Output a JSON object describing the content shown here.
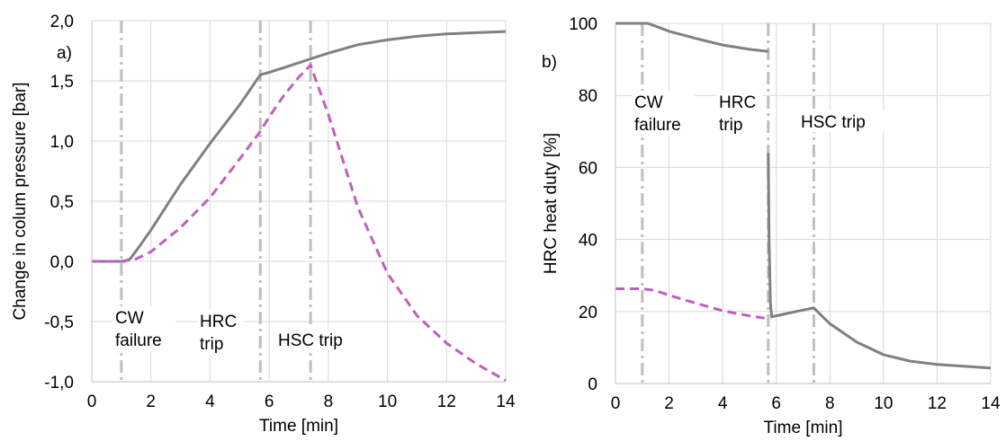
{
  "chart_data": [
    {
      "type": "line",
      "panel_label": "a)",
      "xlabel": "Time [min]",
      "ylabel": "Change in colum pressure [bar]",
      "xlim": [
        0,
        14
      ],
      "ylim": [
        -1.0,
        2.0
      ],
      "xticks": [
        0,
        2,
        4,
        6,
        8,
        10,
        12,
        14
      ],
      "xtick_labels": [
        "0",
        "2",
        "4",
        "6",
        "8",
        "10",
        "12",
        "14"
      ],
      "yticks": [
        -1.0,
        -0.5,
        0.0,
        0.5,
        1.0,
        1.5,
        2.0
      ],
      "ytick_labels": [
        "-1,0",
        "-0,5",
        "0,0",
        "0,5",
        "1,0",
        "1,5",
        "2,0"
      ],
      "grid": true,
      "events": [
        {
          "x": 1.0,
          "label_lines": [
            "CW",
            "failure"
          ]
        },
        {
          "x": 5.7,
          "label_lines": [
            "HRC",
            "trip"
          ]
        },
        {
          "x": 7.4,
          "label_lines": [
            "HSC trip"
          ]
        }
      ],
      "series": [
        {
          "style": "solid",
          "color": "#808080",
          "x": [
            0,
            1.1,
            1.3,
            1.6,
            2,
            3,
            4,
            5,
            5.7,
            6,
            6.5,
            7,
            7.5,
            8,
            9,
            10,
            11,
            12,
            13,
            14
          ],
          "y": [
            0.0,
            0.0,
            0.02,
            0.12,
            0.26,
            0.64,
            0.98,
            1.3,
            1.55,
            1.57,
            1.61,
            1.65,
            1.69,
            1.73,
            1.8,
            1.84,
            1.87,
            1.89,
            1.9,
            1.91
          ]
        },
        {
          "style": "dashed",
          "color": "#bf5fbf",
          "x": [
            0,
            1.0,
            1.5,
            2,
            3,
            4,
            5,
            5.7,
            6,
            6.5,
            7,
            7.4,
            8,
            9,
            10,
            11,
            12,
            13,
            14
          ],
          "y": [
            0.0,
            0.0,
            0.02,
            0.08,
            0.28,
            0.53,
            0.85,
            1.08,
            1.2,
            1.38,
            1.53,
            1.63,
            1.22,
            0.45,
            -0.1,
            -0.45,
            -0.68,
            -0.85,
            -0.99
          ]
        }
      ]
    },
    {
      "type": "line",
      "panel_label": "b)",
      "xlabel": "Time [min]",
      "ylabel": "HRC heat duty [%]",
      "xlim": [
        0,
        14
      ],
      "ylim": [
        0,
        100
      ],
      "xticks": [
        0,
        2,
        4,
        6,
        8,
        10,
        12,
        14
      ],
      "xtick_labels": [
        "0",
        "2",
        "4",
        "6",
        "8",
        "10",
        "12",
        "14"
      ],
      "yticks": [
        0,
        20,
        40,
        60,
        80,
        100
      ],
      "ytick_labels": [
        "0",
        "20",
        "40",
        "60",
        "80",
        "100"
      ],
      "grid": true,
      "events": [
        {
          "x": 1.0,
          "label_lines": [
            "CW",
            "failure"
          ]
        },
        {
          "x": 5.7,
          "label_lines": [
            "HRC",
            "trip"
          ]
        },
        {
          "x": 7.4,
          "label_lines": [
            "HSC trip"
          ]
        }
      ],
      "series": [
        {
          "style": "solid",
          "color": "#808080",
          "x": [
            0,
            1.2,
            1.5,
            2,
            3,
            4,
            5,
            5.7
          ],
          "y": [
            100,
            100,
            99.2,
            97.8,
            95.8,
            94.0,
            92.8,
            92.2
          ]
        },
        {
          "style": "solid",
          "color": "#808080",
          "x": [
            5.7,
            5.73,
            5.78,
            5.83,
            6.0,
            6.5,
            7.0,
            7.4,
            7.6,
            8,
            9,
            10,
            11,
            12,
            13,
            14
          ],
          "y": [
            64,
            40,
            22,
            18.5,
            18.8,
            19.6,
            20.4,
            21.0,
            19.5,
            16.6,
            11.5,
            8.0,
            6.2,
            5.3,
            4.8,
            4.3
          ]
        },
        {
          "style": "dashed",
          "color": "#bf5fbf",
          "x": [
            0,
            1.0,
            1.5,
            2,
            3,
            4,
            5,
            5.7
          ],
          "y": [
            26.3,
            26.3,
            25.8,
            24.5,
            22.3,
            20.2,
            18.8,
            18.0
          ]
        }
      ]
    }
  ]
}
